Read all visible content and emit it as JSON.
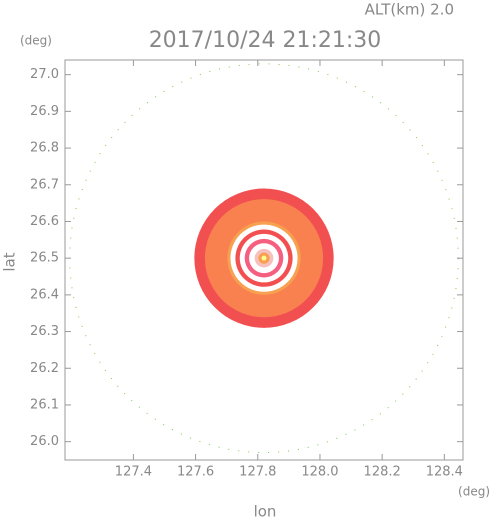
{
  "chart_data": {
    "type": "radar-map",
    "title": "2017/10/24 21:21:30",
    "altitude_label": "ALT(km) 2.0",
    "x_label": "lon",
    "y_label": "lat",
    "x_unit": "(deg)",
    "y_unit": "(deg)",
    "xlim": [
      127.18,
      128.46
    ],
    "ylim": [
      25.95,
      27.04
    ],
    "xticks": [
      127.4,
      127.6,
      127.8,
      {
        "value": 128.0,
        "label": "128.0"
      },
      128.2,
      128.4
    ],
    "yticks": [
      {
        "value": 26.0,
        "label": "26.0"
      },
      26.1,
      26.2,
      26.3,
      26.4,
      26.5,
      26.6,
      26.7,
      26.8,
      26.9,
      {
        "value": 27.0,
        "label": "27.0"
      }
    ],
    "center": [
      127.82,
      26.5
    ],
    "range_ring": {
      "radius": 0.625,
      "color": "#7ec850"
    },
    "rings": [
      {
        "radius": 0.224,
        "color": "#f25050"
      },
      {
        "radius": 0.19,
        "color": "#f98150"
      },
      {
        "radius": 0.118,
        "color": "#f7a050"
      },
      {
        "radius": 0.108,
        "color": "#ffffff"
      },
      {
        "radius": 0.092,
        "color": "#f25050"
      },
      {
        "radius": 0.078,
        "color": "#ffffff"
      },
      {
        "radius": 0.062,
        "color": "#f56080"
      },
      {
        "radius": 0.048,
        "color": "#ffffff"
      },
      {
        "radius": 0.03,
        "color": "#f7c0c0"
      },
      {
        "radius": 0.018,
        "color": "#f8a050"
      },
      {
        "radius": 0.008,
        "color": "#ffff90"
      }
    ]
  }
}
